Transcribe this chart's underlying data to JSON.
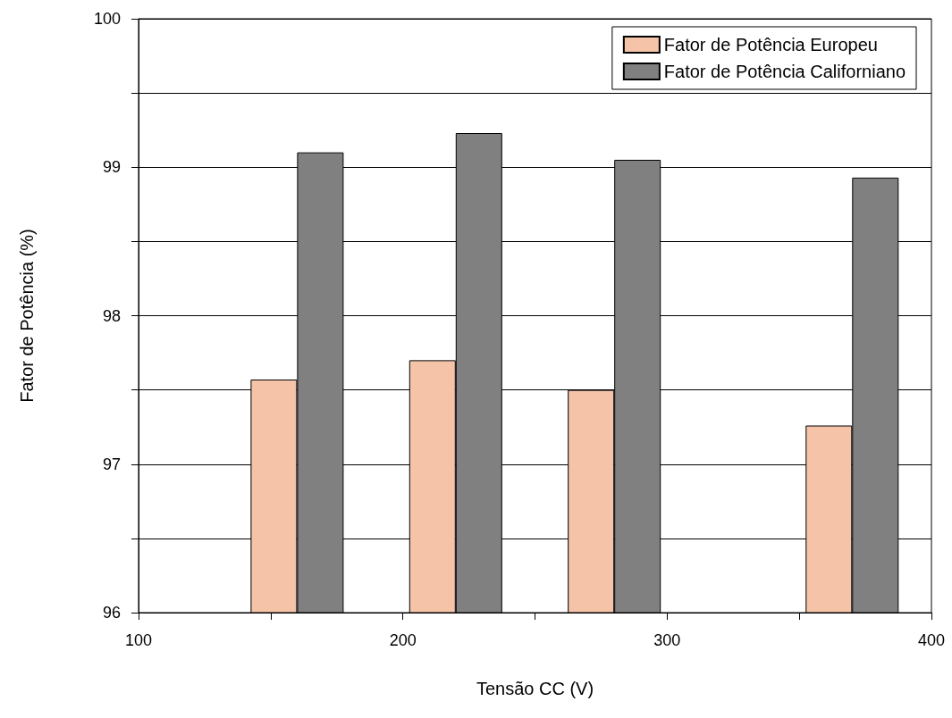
{
  "chart_data": {
    "type": "bar",
    "xlabel": "Tensão CC (V)",
    "ylabel": "Fator de Potência (%)",
    "x": [
      160,
      220,
      280,
      370
    ],
    "series": [
      {
        "name": "Fator de Potência Europeu",
        "color": "#f4c3a8",
        "values": [
          97.57,
          97.7,
          97.5,
          97.26
        ]
      },
      {
        "name": "Fator de Potência Californiano",
        "color": "#808080",
        "values": [
          99.1,
          99.23,
          99.05,
          98.93
        ]
      }
    ],
    "xlim": [
      100,
      400
    ],
    "xticks": [
      100,
      {
        "value": 150,
        "label": null
      },
      200,
      {
        "value": 250,
        "label": null
      },
      300,
      {
        "value": 350,
        "label": null
      },
      400
    ],
    "ylim": [
      96,
      100
    ],
    "yticks": [
      96,
      {
        "value": 96.5,
        "label": null
      },
      97,
      {
        "value": 97.5,
        "label": null
      },
      98,
      {
        "value": 98.5,
        "label": null
      },
      99,
      {
        "value": 99.5,
        "label": null
      },
      100
    ],
    "grid": "y",
    "legend": "top right"
  }
}
